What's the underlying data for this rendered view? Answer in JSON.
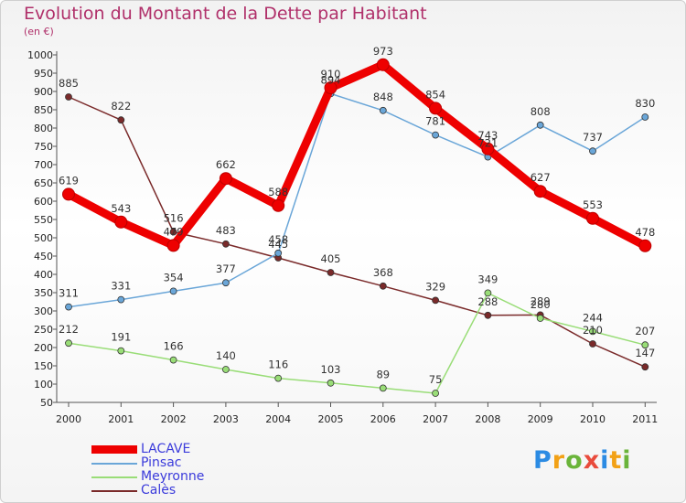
{
  "title": "Evolution du Montant de la Dette par Habitant",
  "subtitle": "(en €)",
  "brand": {
    "letters": [
      "P",
      "r",
      "o",
      "x",
      "i",
      "t",
      "i"
    ],
    "colors": [
      "#2b8be3",
      "#f2a116",
      "#6ab43a",
      "#e94b3c",
      "#2b8be3",
      "#f2a116",
      "#6ab43a"
    ]
  },
  "chart_data": {
    "type": "line",
    "title": "Evolution du Montant de la Dette par Habitant",
    "subtitle": "(en €)",
    "x": [
      "2000",
      "2001",
      "2002",
      "2003",
      "2004",
      "2005",
      "2006",
      "2007",
      "2008",
      "2009",
      "2010",
      "2011"
    ],
    "ylim": [
      50,
      1000
    ],
    "yticks": [
      50,
      100,
      150,
      200,
      250,
      300,
      350,
      400,
      450,
      500,
      550,
      600,
      650,
      700,
      750,
      800,
      850,
      900,
      950,
      1000
    ],
    "grid": false,
    "legend_position": "bottom-left",
    "series": [
      {
        "name": "LACAVE",
        "color": "#ee0000",
        "values": [
          619,
          543,
          479,
          662,
          588,
          910,
          973,
          854,
          743,
          627,
          553,
          478
        ],
        "labels": [
          "619",
          "543",
          "479",
          "662",
          "588",
          "910",
          "973",
          "854",
          "743",
          "627",
          "553",
          "478"
        ]
      },
      {
        "name": "Pinsac",
        "color": "#6aa6d8",
        "values": [
          311,
          331,
          354,
          377,
          458,
          894,
          848,
          781,
          721,
          808,
          737,
          830
        ],
        "labels": [
          "311",
          "331",
          "354",
          "377",
          "458",
          "894",
          "848",
          "781",
          "721",
          "808",
          "737",
          "830"
        ]
      },
      {
        "name": "Meyronne",
        "color": "#99dd77",
        "values": [
          212,
          191,
          166,
          140,
          116,
          103,
          89,
          75,
          349,
          280,
          244,
          207
        ],
        "labels": [
          "212",
          "191",
          "166",
          "140",
          "116",
          "103",
          "89",
          "75",
          "349",
          "280",
          "244",
          "207"
        ]
      },
      {
        "name": "Calès",
        "color": "#7a2a2a",
        "values": [
          885,
          822,
          516,
          483,
          445,
          405,
          368,
          329,
          288,
          289,
          210,
          147
        ],
        "labels": [
          "885",
          "822",
          "516",
          "483",
          "445",
          "405",
          "368",
          "329",
          "288",
          "289",
          "210",
          "147"
        ]
      }
    ]
  }
}
